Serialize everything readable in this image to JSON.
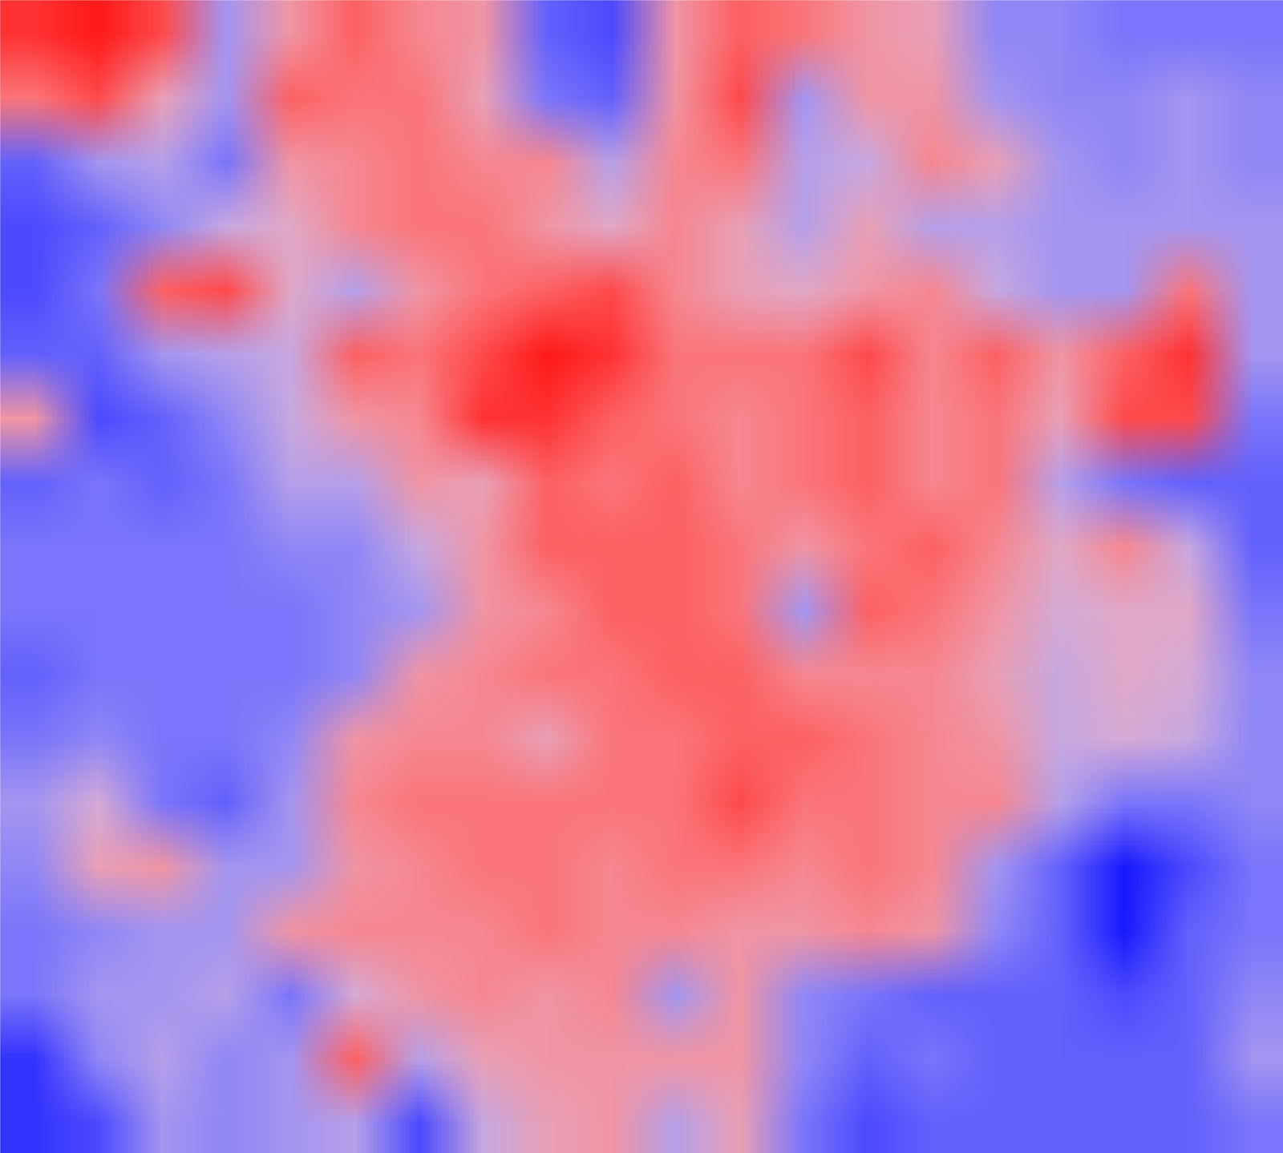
{
  "chart_data": {
    "type": "heatmap",
    "tick_labels": false,
    "color_range": [
      -1,
      1
    ],
    "cells": [
      [
        0.8,
        0.9,
        0.7,
        -0.3,
        0.3,
        0.6,
        0.4,
        0.3,
        -0.6,
        -0.7,
        0.3,
        0.6,
        0.5,
        0.3,
        0.2,
        -0.4,
        -0.4,
        -0.5,
        -0.5,
        -0.5
      ],
      [
        0.5,
        0.7,
        0.2,
        -0.3,
        0.6,
        0.5,
        0.5,
        0.2,
        -0.5,
        -0.6,
        0.3,
        0.7,
        -0.3,
        0.3,
        0.3,
        -0.3,
        -0.4,
        -0.4,
        -0.3,
        -0.4
      ],
      [
        -0.6,
        -0.3,
        -0.2,
        -0.5,
        0.3,
        0.4,
        0.5,
        0.4,
        0.4,
        -0.2,
        0.4,
        0.5,
        -0.2,
        -0.1,
        0.4,
        0.2,
        -0.3,
        -0.4,
        -0.3,
        -0.4
      ],
      [
        -0.7,
        -0.6,
        -0.4,
        -0.1,
        0.1,
        0.4,
        0.5,
        0.5,
        0.3,
        0.1,
        0.4,
        0.2,
        -0.2,
        0.2,
        -0.2,
        -0.2,
        -0.3,
        -0.3,
        -0.3,
        -0.3
      ],
      [
        -0.7,
        -0.5,
        0.6,
        0.7,
        0.1,
        -0.2,
        0.3,
        0.5,
        0.6,
        0.7,
        0.4,
        0.2,
        0.1,
        0.3,
        0.4,
        -0.1,
        -0.3,
        -0.3,
        0.5,
        -0.3
      ],
      [
        -0.6,
        -0.6,
        -0.3,
        -0.2,
        -0.1,
        0.6,
        0.5,
        0.7,
        0.9,
        0.8,
        0.5,
        0.5,
        0.5,
        0.7,
        0.4,
        0.6,
        0.3,
        0.6,
        0.8,
        -0.3
      ],
      [
        0.3,
        -0.7,
        -0.6,
        -0.4,
        -0.1,
        0.3,
        0.4,
        0.8,
        0.8,
        0.6,
        0.5,
        0.4,
        0.5,
        0.6,
        0.4,
        0.5,
        0.2,
        0.7,
        0.7,
        -0.5
      ],
      [
        -0.6,
        -0.5,
        -0.6,
        -0.5,
        -0.2,
        -0.2,
        0.3,
        0.2,
        0.6,
        0.5,
        0.6,
        0.4,
        0.5,
        0.6,
        0.4,
        0.5,
        -0.2,
        -0.5,
        -0.6,
        -0.6
      ],
      [
        -0.5,
        -0.5,
        -0.5,
        -0.5,
        -0.4,
        -0.4,
        -0.1,
        0.3,
        0.6,
        0.6,
        0.6,
        0.5,
        0.3,
        0.5,
        0.6,
        0.4,
        0.1,
        0.4,
        -0.1,
        -0.6
      ],
      [
        -0.5,
        -0.5,
        -0.5,
        -0.5,
        -0.5,
        -0.4,
        -0.3,
        0.3,
        0.4,
        0.6,
        0.6,
        0.5,
        -0.3,
        0.6,
        0.5,
        0.3,
        0.0,
        0.1,
        0.1,
        -0.5
      ],
      [
        -0.6,
        -0.5,
        -0.5,
        -0.5,
        -0.5,
        -0.4,
        0.3,
        0.4,
        0.5,
        0.5,
        0.6,
        0.6,
        0.4,
        0.4,
        0.4,
        0.2,
        -0.1,
        0.1,
        0.0,
        -0.4
      ],
      [
        -0.5,
        -0.4,
        -0.5,
        -0.5,
        -0.4,
        0.3,
        0.4,
        0.4,
        0.2,
        0.5,
        0.5,
        0.6,
        0.6,
        0.5,
        0.4,
        0.3,
        -0.1,
        0.0,
        -0.1,
        -0.4
      ],
      [
        -0.3,
        0.0,
        -0.5,
        -0.6,
        -0.3,
        0.4,
        0.5,
        0.5,
        0.5,
        0.5,
        0.5,
        0.7,
        0.5,
        0.5,
        0.4,
        0.4,
        -0.2,
        -0.5,
        -0.5,
        -0.4
      ],
      [
        -0.4,
        0.2,
        0.3,
        -0.3,
        -0.3,
        0.3,
        0.4,
        0.5,
        0.5,
        0.4,
        0.5,
        0.5,
        0.4,
        0.5,
        0.4,
        -0.3,
        -0.6,
        -0.9,
        -0.7,
        -0.5
      ],
      [
        -0.5,
        -0.4,
        -0.3,
        -0.3,
        0.3,
        0.4,
        0.4,
        0.4,
        0.5,
        0.4,
        0.4,
        0.3,
        0.3,
        0.4,
        0.3,
        -0.4,
        -0.6,
        -0.9,
        -0.6,
        -0.5
      ],
      [
        -0.5,
        -0.3,
        -0.3,
        -0.2,
        -0.5,
        0.0,
        0.3,
        0.4,
        0.3,
        0.4,
        -0.3,
        0.3,
        -0.4,
        -0.5,
        -0.6,
        -0.6,
        -0.6,
        -0.7,
        -0.6,
        -0.4
      ],
      [
        -0.8,
        -0.4,
        -0.2,
        -0.4,
        -0.3,
        0.6,
        -0.2,
        0.2,
        0.3,
        0.3,
        0.3,
        0.3,
        -0.4,
        -0.6,
        -0.5,
        -0.6,
        -0.6,
        -0.6,
        -0.6,
        -0.3
      ],
      [
        -0.8,
        -0.7,
        -0.3,
        -0.4,
        -0.3,
        -0.2,
        -0.7,
        -0.1,
        0.2,
        0.3,
        -0.2,
        0.2,
        -0.5,
        -0.7,
        -0.6,
        -0.6,
        -0.6,
        -0.6,
        -0.6,
        -0.5
      ]
    ]
  }
}
